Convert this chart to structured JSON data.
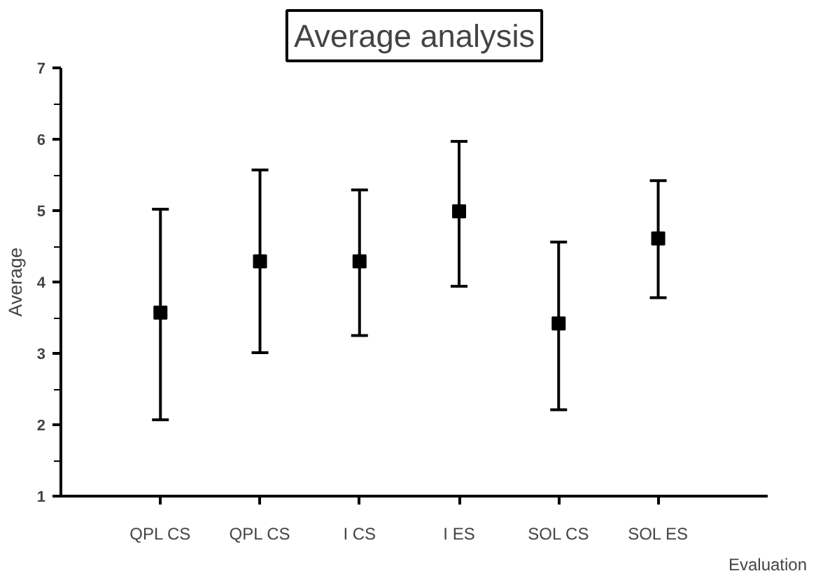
{
  "chart_data": {
    "type": "scatter",
    "title": "Average analysis",
    "xlabel": "Evaluation",
    "ylabel": "Average",
    "categories": [
      "QPL CS",
      "QPL CS",
      "I CS",
      "I ES",
      "SOL CS",
      "SOL ES"
    ],
    "values": [
      3.57,
      4.29,
      4.29,
      4.99,
      3.42,
      4.61
    ],
    "errors": [
      [
        2.07,
        5.02
      ],
      [
        3.01,
        5.57
      ],
      [
        3.25,
        5.29
      ],
      [
        3.94,
        5.97
      ],
      [
        2.21,
        4.56
      ],
      [
        3.78,
        5.42
      ]
    ],
    "color": "#000000",
    "marker": "square",
    "grid": false,
    "ylim": [
      1,
      7
    ],
    "yticks": [
      1,
      2,
      3,
      4,
      5,
      6,
      7
    ]
  }
}
